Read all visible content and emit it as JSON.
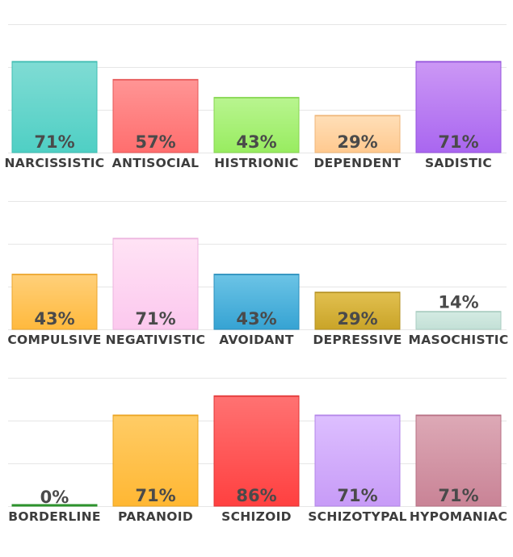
{
  "chart_data": [
    {
      "type": "bar",
      "ylim": [
        0,
        100
      ],
      "grid": true,
      "value_suffix": "%",
      "categories": [
        "NARCISSISTIC",
        "ANTISOCIAL",
        "HISTRIONIC",
        "DEPENDENT",
        "SADISTIC"
      ],
      "values": [
        71,
        57,
        43,
        29,
        71
      ],
      "colors": [
        [
          "#80dcd4",
          "#4fcfc4",
          "#3fbdb2"
        ],
        [
          "#ff9595",
          "#ff6e6e",
          "#e65757"
        ],
        [
          "#b9f590",
          "#98ec60",
          "#86d64f"
        ],
        [
          "#ffdfb8",
          "#ffc98f",
          "#efb679"
        ],
        [
          "#cc98f5",
          "#a966f0",
          "#9553dc"
        ]
      ]
    },
    {
      "type": "bar",
      "ylim": [
        0,
        100
      ],
      "grid": true,
      "value_suffix": "%",
      "categories": [
        "COMPULSIVE",
        "NEGATIVISTIC",
        "AVOIDANT",
        "DEPRESSIVE",
        "MASOCHISTIC"
      ],
      "values": [
        43,
        71,
        43,
        29,
        14
      ],
      "colors": [
        [
          "#ffd07a",
          "#ffb93d",
          "#eba52e"
        ],
        [
          "#ffe3f5",
          "#fcc8ee",
          "#ecb4df"
        ],
        [
          "#6cc4e6",
          "#36a3d3",
          "#2a8fbd"
        ],
        [
          "#e2c050",
          "#c9a428",
          "#b49020"
        ],
        [
          "#d4ebe3",
          "#c3e0d6",
          "#aacdc1"
        ]
      ]
    },
    {
      "type": "bar",
      "ylim": [
        0,
        100
      ],
      "grid": true,
      "value_suffix": "%",
      "categories": [
        "BORDERLINE",
        "PARANOID",
        "SCHIZOID",
        "SCHIZOTYPAL",
        "HYPOMANIAC"
      ],
      "values": [
        0,
        71,
        86,
        71,
        71
      ],
      "colors": [
        [
          "#5bc25b",
          "#2e9e2e",
          "#2a8f2a"
        ],
        [
          "#ffcc66",
          "#ffb733",
          "#eaa423"
        ],
        [
          "#ff7272",
          "#ff4040",
          "#e23434"
        ],
        [
          "#ddbfff",
          "#c79bf7",
          "#b385e8"
        ],
        [
          "#dda9b6",
          "#c98396",
          "#b77184"
        ]
      ]
    }
  ]
}
